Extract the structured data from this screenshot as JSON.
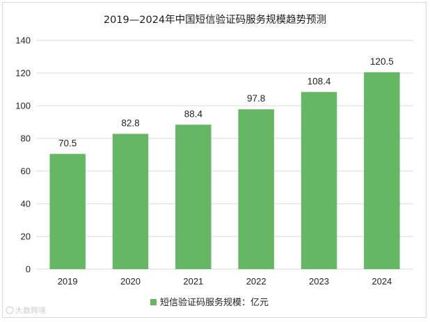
{
  "chart_data": {
    "type": "bar",
    "title": "2019—2024年中国短信验证码服务规模趋势预测",
    "categories": [
      "2019",
      "2020",
      "2021",
      "2022",
      "2023",
      "2024"
    ],
    "series": [
      {
        "name": "短信验证码服务规模：亿元",
        "values": [
          70.5,
          82.8,
          88.4,
          97.8,
          108.4,
          120.5
        ],
        "data_labels": [
          "70.5",
          "82.8",
          "88.4",
          "97.8",
          "108.4",
          "120.5"
        ]
      }
    ],
    "ylim": [
      0,
      140
    ],
    "yticks": [
      0,
      20,
      40,
      60,
      80,
      100,
      120,
      140
    ],
    "grid": true,
    "legend_position": "bottom",
    "bar_color": "#66b764",
    "grid_color": "#d9d9d9"
  },
  "watermark": {
    "text": "大数跨境"
  }
}
